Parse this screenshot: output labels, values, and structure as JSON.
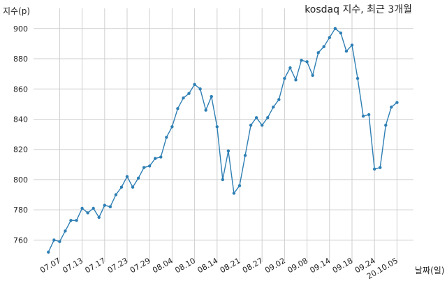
{
  "chart_data": {
    "type": "line",
    "title": "kosdaq 지수, 최근 3개월",
    "xlabel": "날짜(일)",
    "ylabel": "지수(p)",
    "ylim": [
      750,
      905
    ],
    "yticks": [
      760,
      780,
      800,
      820,
      840,
      860,
      880,
      900
    ],
    "x_tick_labels": [
      "07.07",
      "07.13",
      "07.17",
      "07.23",
      "07.29",
      "08.04",
      "08.10",
      "08.14",
      "08.21",
      "08.27",
      "09.02",
      "09.08",
      "09.14",
      "09.18",
      "09.24",
      "20.10.05"
    ],
    "x_tick_index": [
      2,
      6,
      10,
      14,
      18,
      22,
      26,
      30,
      34,
      38,
      42,
      46,
      50,
      54,
      58,
      62
    ],
    "grid": true,
    "legend": "none",
    "series": [
      {
        "color": "#2e7fb4",
        "values": [
          752,
          760,
          759,
          766,
          773,
          773,
          781,
          778,
          781,
          775,
          783,
          782,
          790,
          795,
          802,
          795,
          801,
          808,
          809,
          814,
          815,
          828,
          835,
          847,
          854,
          857,
          863,
          860,
          846,
          855,
          835,
          800,
          819,
          791,
          796,
          816,
          836,
          841,
          836,
          841,
          848,
          853,
          867,
          874,
          866,
          879,
          878,
          869,
          884,
          888,
          894,
          900,
          897,
          885,
          889,
          867,
          842,
          843,
          807,
          808,
          836,
          848,
          851
        ]
      }
    ]
  }
}
